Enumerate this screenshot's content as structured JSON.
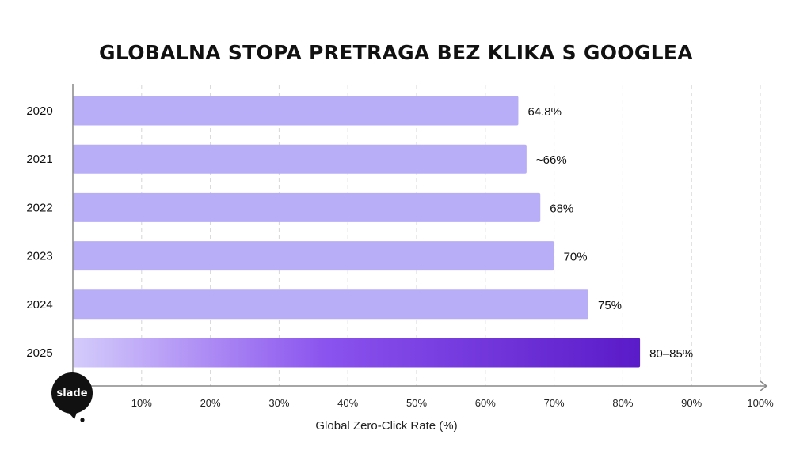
{
  "title": "GLOBALNA STOPA PRETRAGA BEZ KLIKA S GOOGLEA",
  "logo": {
    "text": "slade"
  },
  "chart_data": {
    "type": "bar",
    "orientation": "horizontal",
    "title": "GLOBALNA STOPA PRETRAGA BEZ KLIKA S GOOGLEA",
    "xlabel": "Global Zero-Click Rate (%)",
    "ylabel": "",
    "xlim": [
      0,
      100
    ],
    "x_ticks": [
      10,
      20,
      30,
      40,
      50,
      60,
      70,
      80,
      90,
      100
    ],
    "x_tick_labels": [
      "10%",
      "20%",
      "30%",
      "40%",
      "50%",
      "60%",
      "70%",
      "80%",
      "90%",
      "100%"
    ],
    "grid": "vertical-dashed",
    "categories": [
      "2020",
      "2021",
      "2022",
      "2023",
      "2024",
      "2025"
    ],
    "values": [
      64.8,
      66,
      68,
      70,
      75,
      82.5
    ],
    "data_labels": [
      "64.8%",
      "~66%",
      "68%",
      "70%",
      "75%",
      "80–85%"
    ],
    "bar_color": "#b8aef8",
    "highlight_gradient": [
      "#d4ccfb",
      "#8a52ee",
      "#5a1bc8"
    ],
    "axis_color": "#888888",
    "grid_color": "#d6d6d6"
  }
}
